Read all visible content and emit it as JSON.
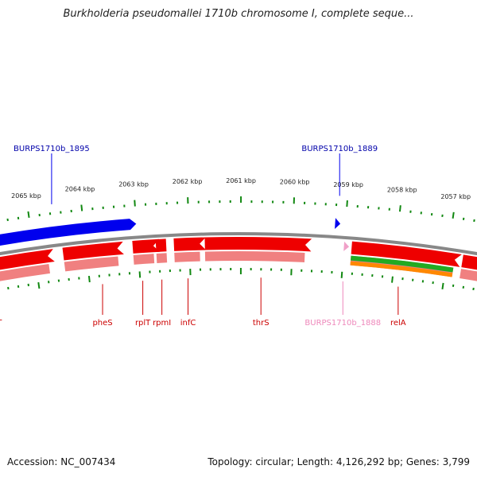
{
  "title": "Burkholderia pseudomallei 1710b chromosome I, complete seque...",
  "footer": {
    "accession": "Accession: NC_007434",
    "summary": "Topology: circular; Length: 4,126,292 bp; Genes: 3,799"
  },
  "colors": {
    "forward_gene": "#0000ee",
    "reverse_gene": "#ee0000",
    "pseudo_gene": "#f0a0c8",
    "rna_track": "#f08080",
    "backbone": "#888888",
    "tick": "#118811",
    "green_track": "#22aa22",
    "orange_track": "#ff8800"
  },
  "scale": {
    "labels": [
      "2065 kbp",
      "2064 kbp",
      "2063 kbp",
      "2062 kbp",
      "2061 kbp",
      "2060 kbp",
      "2059 kbp",
      "2058 kbp",
      "2057 kbp"
    ],
    "kbp": [
      2065,
      2064,
      2063,
      2062,
      2061,
      2060,
      2059,
      2058,
      2057
    ]
  },
  "top_labels": [
    {
      "name": "BURPS1710b_1895",
      "kbp": 2064.55
    },
    {
      "name": "BURPS1710b_1889",
      "kbp": 2059.15
    }
  ],
  "genes": [
    {
      "name": "pheT",
      "start": 2066.4,
      "end": 2064.75,
      "strand": -1,
      "kind": "cds"
    },
    {
      "name": "pheS",
      "start": 2064.45,
      "end": 2063.4,
      "strand": -1,
      "kind": "cds"
    },
    {
      "name": "rplT",
      "start": 2063.1,
      "end": 2062.7,
      "strand": -1,
      "kind": "cds"
    },
    {
      "name": "rpmI",
      "start": 2062.65,
      "end": 2062.45,
      "strand": -1,
      "kind": "cds"
    },
    {
      "name": "infC",
      "start": 2062.3,
      "end": 2061.8,
      "strand": -1,
      "kind": "cds"
    },
    {
      "name": "thrS",
      "start": 2061.7,
      "end": 2059.75,
      "strand": -1,
      "kind": "cds"
    },
    {
      "name": "BURPS1710b_1888",
      "start": 2059.0,
      "end": 2058.9,
      "strand": -1,
      "kind": "pseudo"
    },
    {
      "name": "relA",
      "start": 2058.85,
      "end": 2056.85,
      "strand": -1,
      "kind": "cds"
    },
    {
      "name": "",
      "start": 2056.7,
      "end": 2056.0,
      "strand": -1,
      "kind": "cds"
    }
  ],
  "forward_genes": [
    {
      "start": 2066.9,
      "end": 2063.0
    },
    {
      "start": 2059.2,
      "end": 2059.1
    }
  ],
  "bottom_labels": [
    {
      "name": "pheT",
      "kbp": 2065.95,
      "color": "#cc0000"
    },
    {
      "name": "pheS",
      "kbp": 2063.75,
      "color": "#cc0000"
    },
    {
      "name": "rplT",
      "kbp": 2062.95,
      "color": "#cc0000"
    },
    {
      "name": "rpmI",
      "kbp": 2062.57,
      "color": "#cc0000"
    },
    {
      "name": "infC",
      "kbp": 2062.05,
      "color": "#cc0000"
    },
    {
      "name": "thrS",
      "kbp": 2060.6,
      "color": "#cc0000"
    },
    {
      "name": "BURPS1710b_1888",
      "kbp": 2058.97,
      "color": "#ee88bb"
    },
    {
      "name": "relA",
      "kbp": 2057.87,
      "color": "#cc0000"
    }
  ]
}
